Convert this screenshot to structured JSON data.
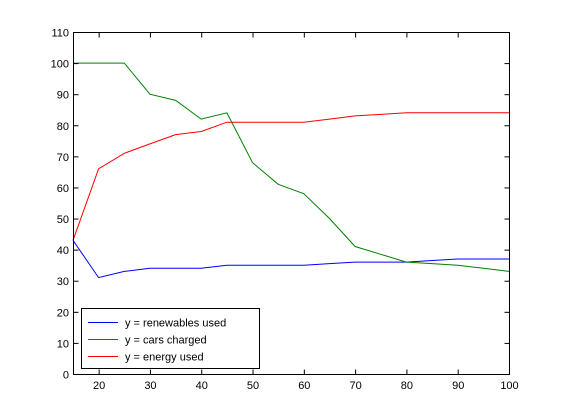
{
  "chart_data": {
    "type": "line",
    "title": "",
    "xlabel": "",
    "ylabel": "",
    "xlim": [
      15,
      100
    ],
    "ylim": [
      0,
      110
    ],
    "xticks": [
      20,
      30,
      40,
      50,
      60,
      70,
      80,
      90,
      100
    ],
    "yticks": [
      0,
      10,
      20,
      30,
      40,
      50,
      60,
      70,
      80,
      90,
      100,
      110
    ],
    "grid": false,
    "legend_position": "bottom-left",
    "series": [
      {
        "name": "y = renewables used",
        "color": "#0000ff",
        "points": [
          [
            15,
            43
          ],
          [
            20,
            31
          ],
          [
            25,
            33
          ],
          [
            30,
            34
          ],
          [
            35,
            34
          ],
          [
            40,
            34
          ],
          [
            45,
            35
          ],
          [
            50,
            35
          ],
          [
            55,
            35
          ],
          [
            60,
            35
          ],
          [
            65,
            35.5
          ],
          [
            70,
            36
          ],
          [
            75,
            36
          ],
          [
            80,
            36
          ],
          [
            85,
            36.5
          ],
          [
            90,
            37
          ],
          [
            95,
            37
          ],
          [
            100,
            37
          ]
        ]
      },
      {
        "name": "y = cars charged",
        "color": "#008000",
        "points": [
          [
            15,
            100
          ],
          [
            20,
            100
          ],
          [
            25,
            100
          ],
          [
            30,
            90
          ],
          [
            35,
            88
          ],
          [
            40,
            82
          ],
          [
            45,
            84
          ],
          [
            50,
            68
          ],
          [
            55,
            61
          ],
          [
            60,
            58
          ],
          [
            65,
            50
          ],
          [
            70,
            41
          ],
          [
            75,
            38.5
          ],
          [
            80,
            36
          ],
          [
            85,
            35.5
          ],
          [
            90,
            35
          ],
          [
            95,
            34
          ],
          [
            100,
            33
          ]
        ]
      },
      {
        "name": "y = energy used",
        "color": "#ff0000",
        "points": [
          [
            15,
            43
          ],
          [
            20,
            66
          ],
          [
            25,
            71
          ],
          [
            30,
            74
          ],
          [
            35,
            77
          ],
          [
            40,
            78
          ],
          [
            45,
            81
          ],
          [
            50,
            81
          ],
          [
            55,
            81
          ],
          [
            60,
            81
          ],
          [
            65,
            82
          ],
          [
            70,
            83
          ],
          [
            75,
            83.5
          ],
          [
            80,
            84
          ],
          [
            85,
            84
          ],
          [
            90,
            84
          ],
          [
            95,
            84
          ],
          [
            100,
            84
          ]
        ]
      }
    ]
  }
}
